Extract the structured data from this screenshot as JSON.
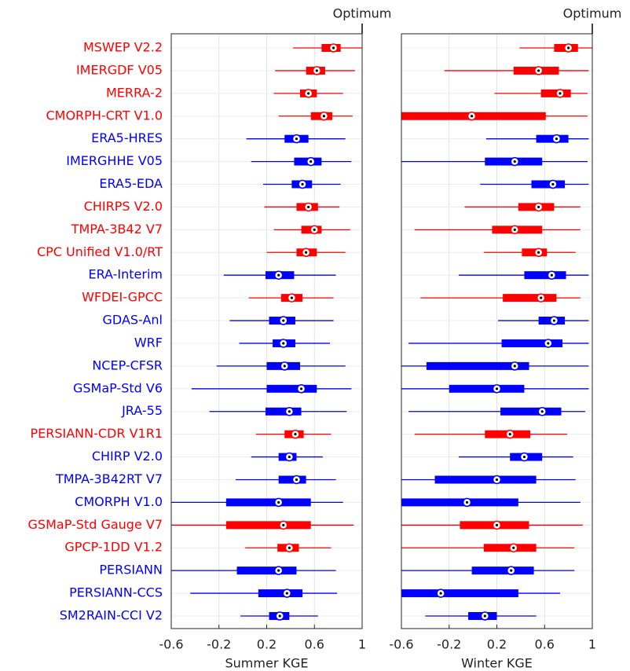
{
  "chart_data": [
    {
      "type": "box",
      "xlabel": "Summer KGE",
      "annotation": "Optimum",
      "categories": [
        "MSWEP V2.2",
        "IMERGDF V05",
        "MERRA-2",
        "CMORPH-CRT V1.0",
        "ERA5-HRES",
        "IMERGHHE V05",
        "ERA5-EDA",
        "CHIRPS V2.0",
        "TMPA-3B42 V7",
        "CPC Unified V1.0/RT",
        "ERA-Interim",
        "WFDEI-GPCC",
        "GDAS-Anl",
        "WRF",
        "NCEP-CFSR",
        "GSMaP-Std V6",
        "JRA-55",
        "PERSIANN-CDR V1R1",
        "CHIRP V2.0",
        "TMPA-3B42RT V7",
        "CMORPH V1.0",
        "GSMaP-Std Gauge V7",
        "GPCP-1DD V1.2",
        "PERSIANN",
        "PERSIANN-CCS",
        "SM2RAIN-CCI V2"
      ],
      "colors": [
        "#ff0000",
        "#ff0000",
        "#ff0000",
        "#ff0000",
        "#0000ff",
        "#0000ff",
        "#0000ff",
        "#ff0000",
        "#ff0000",
        "#ff0000",
        "#0000ff",
        "#ff0000",
        "#0000ff",
        "#0000ff",
        "#0000ff",
        "#0000ff",
        "#0000ff",
        "#ff0000",
        "#0000ff",
        "#0000ff",
        "#0000ff",
        "#ff0000",
        "#ff0000",
        "#0000ff",
        "#0000ff",
        "#0000ff"
      ],
      "whislo": [
        0.42,
        0.27,
        0.26,
        0.3,
        0.03,
        0.07,
        0.17,
        0.18,
        0.26,
        0.2,
        -0.16,
        0.05,
        -0.11,
        -0.03,
        -0.22,
        -0.43,
        -0.28,
        0.11,
        0.07,
        -0.06,
        -0.6,
        -0.6,
        0.02,
        -0.6,
        -0.44,
        -0.02
      ],
      "q1": [
        0.66,
        0.53,
        0.48,
        0.57,
        0.35,
        0.43,
        0.41,
        0.45,
        0.49,
        0.45,
        0.19,
        0.32,
        0.22,
        0.25,
        0.2,
        0.2,
        0.19,
        0.35,
        0.3,
        0.3,
        -0.14,
        -0.14,
        0.29,
        -0.05,
        0.13,
        0.22
      ],
      "med": [
        0.76,
        0.62,
        0.55,
        0.68,
        0.45,
        0.57,
        0.5,
        0.55,
        0.6,
        0.53,
        0.3,
        0.41,
        0.34,
        0.34,
        0.35,
        0.49,
        0.39,
        0.44,
        0.39,
        0.45,
        0.3,
        0.34,
        0.39,
        0.3,
        0.37,
        0.31
      ],
      "q3": [
        0.82,
        0.69,
        0.62,
        0.75,
        0.55,
        0.66,
        0.58,
        0.63,
        0.66,
        0.62,
        0.43,
        0.5,
        0.44,
        0.44,
        0.48,
        0.62,
        0.49,
        0.51,
        0.45,
        0.53,
        0.57,
        0.57,
        0.47,
        0.45,
        0.5,
        0.39
      ],
      "whishi": [
        1.0,
        0.94,
        0.84,
        0.92,
        0.86,
        0.91,
        0.82,
        0.81,
        0.9,
        0.86,
        0.78,
        0.76,
        0.76,
        0.73,
        0.86,
        0.91,
        0.87,
        0.74,
        0.67,
        0.78,
        0.84,
        0.93,
        0.74,
        0.78,
        0.79,
        0.63
      ],
      "xlim": [
        -0.6,
        1
      ],
      "xticks": [
        -0.6,
        -0.2,
        0.2,
        0.6,
        1
      ],
      "grid": true
    },
    {
      "type": "box",
      "xlabel": "Winter KGE",
      "annotation": "Optimum",
      "whislo": [
        0.39,
        -0.24,
        0.18,
        -0.6,
        0.11,
        -0.6,
        0.06,
        -0.07,
        -0.49,
        0.09,
        -0.12,
        -0.44,
        0.21,
        -0.54,
        -0.6,
        -0.6,
        -0.54,
        -0.49,
        -0.12,
        -0.6,
        -0.6,
        -0.6,
        -0.6,
        -0.6,
        -0.6,
        -0.4
      ],
      "q1": [
        0.68,
        0.34,
        0.57,
        -0.6,
        0.53,
        0.1,
        0.49,
        0.38,
        0.16,
        0.41,
        0.43,
        0.25,
        0.55,
        0.24,
        -0.39,
        -0.2,
        0.23,
        0.1,
        0.31,
        -0.32,
        -0.6,
        -0.11,
        0.09,
        -0.01,
        -0.6,
        -0.04
      ],
      "med": [
        0.8,
        0.55,
        0.73,
        -0.01,
        0.7,
        0.35,
        0.67,
        0.55,
        0.35,
        0.55,
        0.66,
        0.57,
        0.68,
        0.63,
        0.35,
        0.2,
        0.58,
        0.31,
        0.43,
        0.2,
        -0.05,
        0.2,
        0.34,
        0.32,
        -0.27,
        0.1
      ],
      "q3": [
        0.88,
        0.72,
        0.82,
        0.61,
        0.8,
        0.58,
        0.77,
        0.68,
        0.58,
        0.62,
        0.78,
        0.7,
        0.77,
        0.75,
        0.47,
        0.43,
        0.74,
        0.48,
        0.58,
        0.53,
        0.38,
        0.47,
        0.53,
        0.51,
        0.38,
        0.2
      ],
      "whishi": [
        1.0,
        0.97,
        0.96,
        0.96,
        0.97,
        0.96,
        0.97,
        0.9,
        0.9,
        0.86,
        0.97,
        0.9,
        0.97,
        0.97,
        0.97,
        0.97,
        0.94,
        0.79,
        0.84,
        0.86,
        0.9,
        0.92,
        0.85,
        0.85,
        0.73,
        0.53
      ],
      "xlim": [
        -0.6,
        1
      ],
      "xticks": [
        -0.6,
        -0.2,
        0.2,
        0.6,
        1
      ],
      "grid": true
    }
  ]
}
